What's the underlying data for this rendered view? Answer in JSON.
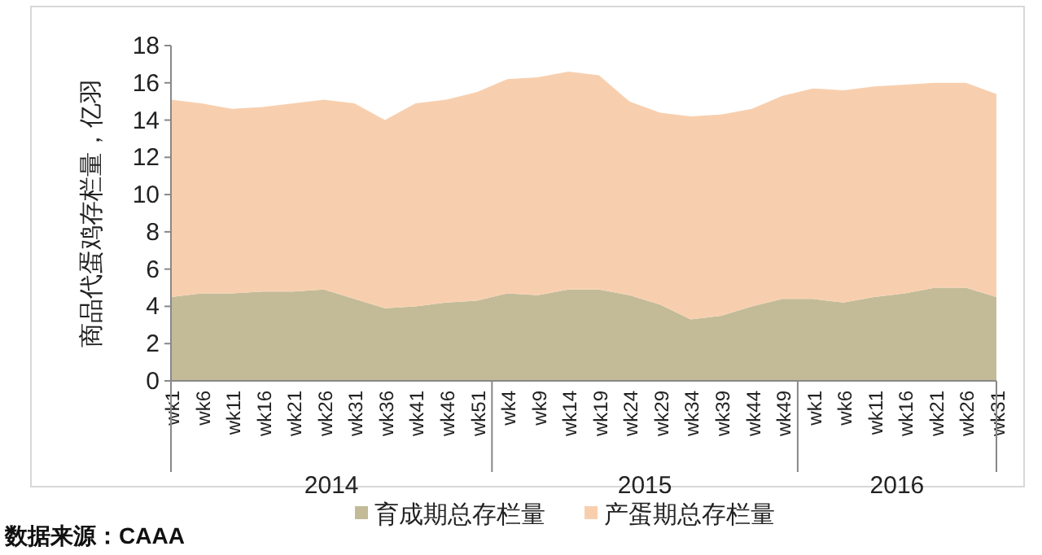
{
  "chart_data": {
    "type": "area",
    "stacked": true,
    "ylabel": "商品代蛋鸡存栏量，亿羽",
    "categories": [
      "wk1",
      "wk6",
      "wk11",
      "wk16",
      "wk21",
      "wk26",
      "wk31",
      "wk36",
      "wk41",
      "wk46",
      "wk51",
      "wk4",
      "wk9",
      "wk14",
      "wk19",
      "wk24",
      "wk29",
      "wk34",
      "wk39",
      "wk44",
      "wk49",
      "wk1",
      "wk6",
      "wk11",
      "wk16",
      "wk21",
      "wk26",
      "wk31"
    ],
    "series": [
      {
        "name": "育成期总存栏量",
        "color": "#c3bb98",
        "values": [
          4.5,
          4.7,
          4.7,
          4.8,
          4.8,
          4.9,
          4.4,
          3.9,
          4.0,
          4.2,
          4.3,
          4.7,
          4.6,
          4.9,
          4.9,
          4.6,
          4.1,
          3.3,
          3.5,
          4.0,
          4.4,
          4.4,
          4.2,
          4.5,
          4.7,
          5.0,
          5.0,
          4.5
        ]
      },
      {
        "name": "产蛋期总存栏量",
        "color": "#f8cfae",
        "values": [
          10.6,
          10.2,
          9.9,
          9.9,
          10.1,
          10.2,
          10.5,
          10.1,
          10.9,
          10.9,
          11.2,
          11.5,
          11.7,
          11.7,
          11.5,
          10.4,
          10.3,
          10.9,
          10.8,
          10.6,
          10.9,
          11.3,
          11.4,
          11.3,
          11.2,
          11.0,
          11.0,
          10.9
        ]
      }
    ],
    "ylim": [
      0,
      18
    ],
    "yticks": [
      0,
      2,
      4,
      6,
      8,
      10,
      12,
      14,
      16,
      18
    ],
    "grid": false,
    "legend": "bottom",
    "annotations": [
      "2014",
      "2015",
      "2016",
      "数据来源：CAAA"
    ]
  }
}
